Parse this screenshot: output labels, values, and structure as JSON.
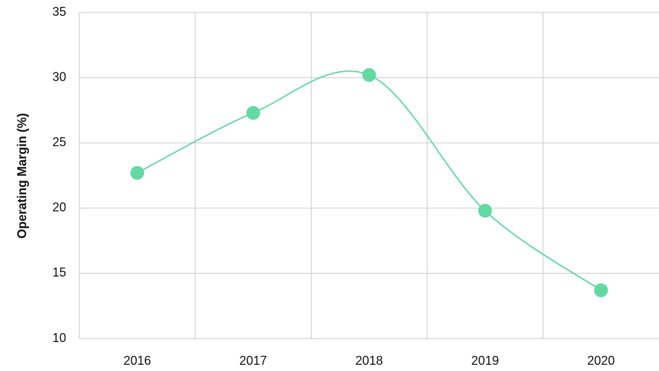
{
  "chart_data": {
    "type": "line",
    "y_label": "Operating Margin (%)",
    "categories": [
      "2016",
      "2017",
      "2018",
      "2019",
      "2020"
    ],
    "values": [
      22.7,
      27.3,
      30.2,
      19.8,
      13.7
    ],
    "color": "#62d9a3",
    "smooth": true,
    "ylim": [
      10,
      35
    ],
    "yticks": [
      10,
      15,
      20,
      25,
      30,
      35
    ],
    "grid": true
  }
}
